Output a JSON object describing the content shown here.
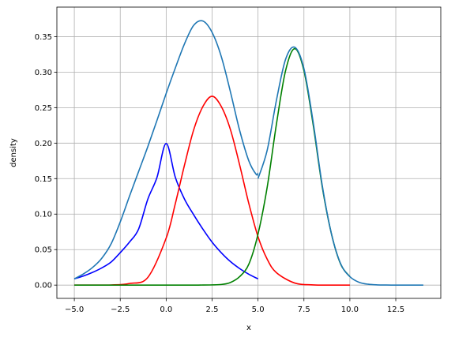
{
  "chart_data": {
    "type": "line",
    "xlabel": "x",
    "ylabel": "density",
    "xlim": [
      -5.95,
      14.95
    ],
    "ylim": [
      -0.0187,
      0.3916
    ],
    "xticks": [
      -5.0,
      -2.5,
      0.0,
      2.5,
      5.0,
      7.5,
      10.0,
      12.5
    ],
    "xtick_labels": [
      "−5.0",
      "−2.5",
      "0.0",
      "2.5",
      "5.0",
      "7.5",
      "10.0",
      "12.5"
    ],
    "yticks": [
      0.0,
      0.05,
      0.1,
      0.15,
      0.2,
      0.25,
      0.3,
      0.35
    ],
    "ytick_labels": [
      "0.00",
      "0.05",
      "0.10",
      "0.15",
      "0.20",
      "0.25",
      "0.30",
      "0.35"
    ],
    "grid": true,
    "series": [
      {
        "color": "#0000ff",
        "x": [
          -5.0,
          -4.5,
          -4.0,
          -3.5,
          -3.0,
          -2.5,
          -2.0,
          -1.5,
          -1.0,
          -0.5,
          0.0,
          0.5,
          1.0,
          1.5,
          2.0,
          2.5,
          3.0,
          3.5,
          4.0,
          4.5,
          5.0
        ],
        "y": [
          0.0088,
          0.0129,
          0.018,
          0.0243,
          0.0324,
          0.0457,
          0.0605,
          0.079,
          0.121,
          0.1517,
          0.1995,
          0.1517,
          0.121,
          0.099,
          0.0788,
          0.0605,
          0.0456,
          0.0331,
          0.0233,
          0.0153,
          0.0088
        ]
      },
      {
        "color": "#ff0000",
        "x": [
          -5.0,
          -4.0,
          -3.0,
          -2.0,
          -1.0,
          0.0,
          0.5,
          1.0,
          1.5,
          2.0,
          2.5,
          3.0,
          3.5,
          4.0,
          4.5,
          5.0,
          5.5,
          6.0,
          7.0,
          8.0,
          9.0,
          10.0
        ],
        "y": [
          0.0,
          0.0,
          0.0002,
          0.0023,
          0.0108,
          0.0662,
          0.1149,
          0.1693,
          0.2189,
          0.2516,
          0.266,
          0.2516,
          0.2189,
          0.1693,
          0.1149,
          0.0682,
          0.0365,
          0.0176,
          0.0029,
          0.0003,
          0.0,
          0.0
        ]
      },
      {
        "color": "#008000",
        "x": [
          -5.0,
          0.0,
          2.0,
          3.0,
          3.5,
          4.0,
          4.5,
          5.0,
          5.5,
          6.0,
          6.5,
          7.0,
          7.5,
          8.0,
          8.5,
          9.0,
          9.5,
          10.0
        ],
        "y": [
          0.0,
          0.0,
          0.0001,
          0.0009,
          0.0037,
          0.0119,
          0.0295,
          0.0719,
          0.138,
          0.2263,
          0.302,
          0.333,
          0.302,
          0.2263,
          0.138,
          0.0719,
          0.0295,
          0.0119
        ]
      },
      {
        "color": "#1f77b4",
        "x": [
          -5.0,
          -4.5,
          -4.0,
          -3.5,
          -3.0,
          -2.5,
          -2.0,
          -1.5,
          -1.0,
          -0.5,
          0.0,
          0.5,
          1.0,
          1.5,
          2.0,
          2.5,
          3.0,
          3.5,
          4.0,
          4.5,
          4.9,
          5.0
        ],
        "y": [
          0.0088,
          0.0158,
          0.025,
          0.038,
          0.058,
          0.089,
          0.125,
          0.16,
          0.195,
          0.232,
          0.27,
          0.306,
          0.34,
          0.366,
          0.372,
          0.356,
          0.322,
          0.272,
          0.218,
          0.175,
          0.156,
          0.158
        ]
      },
      {
        "color": "#1f77b4",
        "x": [
          5.0,
          5.5,
          6.0,
          6.5,
          7.0,
          7.5,
          8.0,
          8.5,
          9.0,
          9.5,
          10.0,
          10.5,
          11.0,
          11.5,
          12.0,
          12.5,
          13.0,
          13.5,
          14.0
        ],
        "y": [
          0.15,
          0.19,
          0.26,
          0.318,
          0.335,
          0.305,
          0.23,
          0.14,
          0.072,
          0.03,
          0.012,
          0.004,
          0.0012,
          0.0003,
          0.0001,
          0.0,
          0.0,
          0.0,
          0.0
        ]
      }
    ]
  }
}
